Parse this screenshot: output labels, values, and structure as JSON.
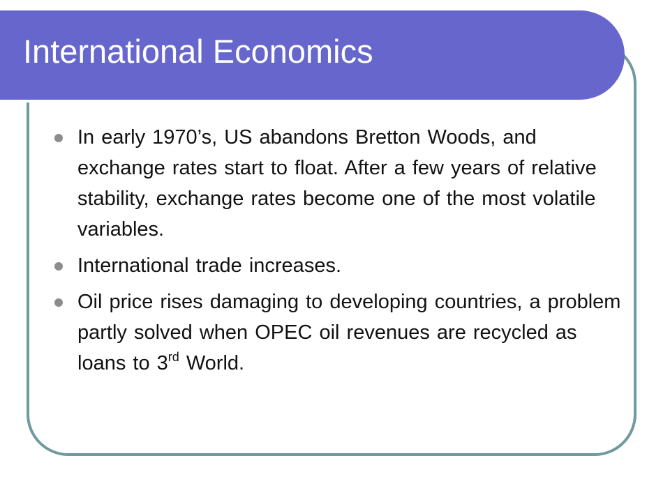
{
  "slide": {
    "title": "International Economics",
    "bullets": [
      {
        "text": "In early 1970’s, US abandons Bretton Woods, and exchange rates start to float. After a few years of relative stability, exchange rates become one of the most volatile variables."
      },
      {
        "text": "International trade increases."
      },
      {
        "text_before": "Oil price rises damaging to developing countries, a problem partly solved when OPEC oil revenues are recycled as loans to 3",
        "superscript": "rd",
        "text_after": " World."
      }
    ]
  },
  "colors": {
    "title_bar": "#6666cc",
    "frame_border": "#6f9a9e",
    "bullet_dot": "#8c8c8c",
    "title_text": "#ffffff",
    "body_text": "#111111"
  }
}
